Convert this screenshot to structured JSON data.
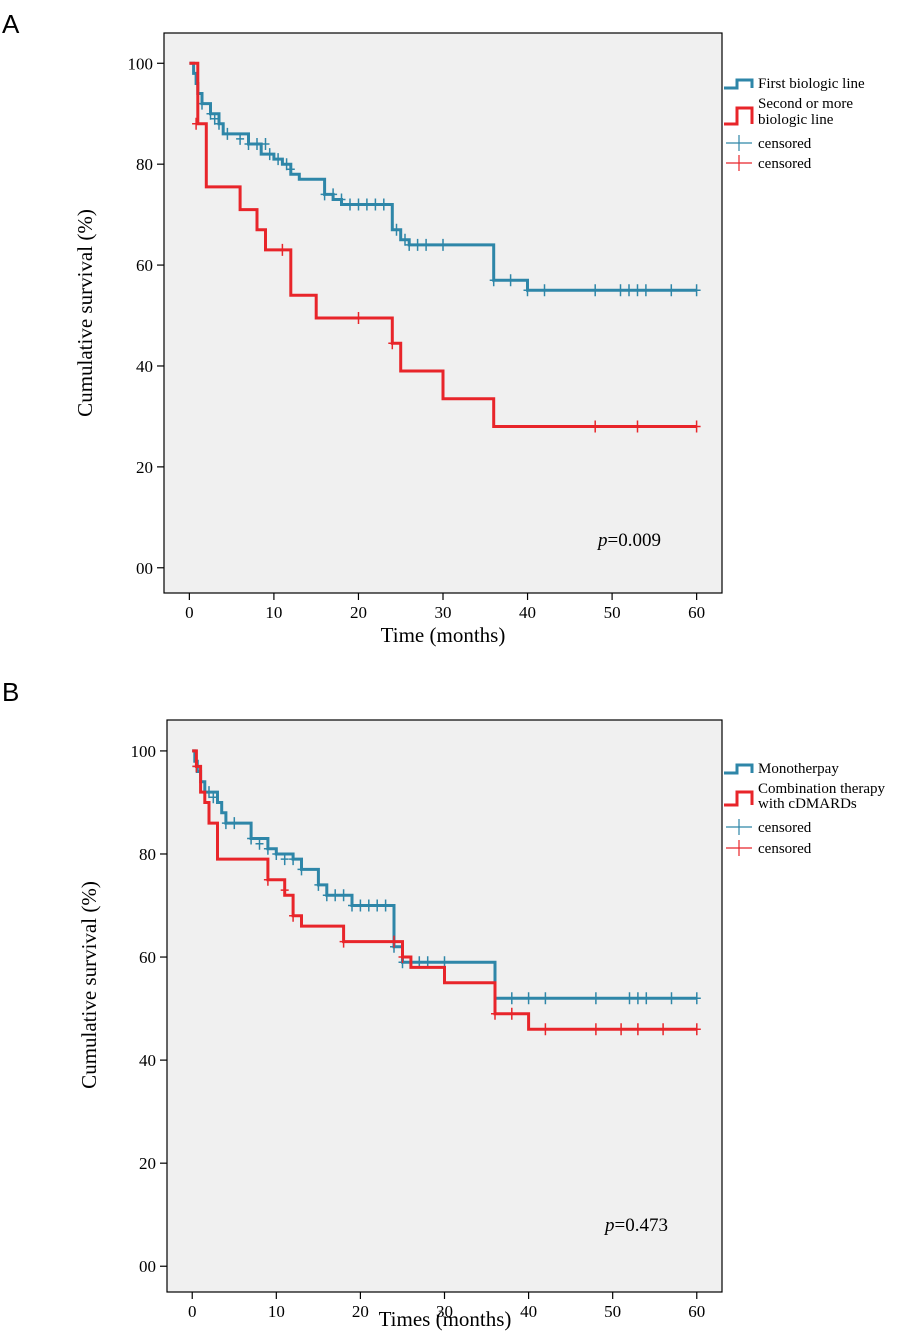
{
  "figure": {
    "panels": [
      "A",
      "B"
    ]
  },
  "chart_data": [
    {
      "type": "line",
      "subtype": "kaplan-meier",
      "panel_label": "A",
      "xlabel": "Time (months)",
      "ylabel": "Cumulative survival (%)",
      "xlim": [
        -3,
        63
      ],
      "ylim": [
        -5,
        106
      ],
      "x_ticks": [
        0,
        10,
        20,
        30,
        40,
        50,
        60
      ],
      "y_ticks": [
        0,
        20,
        40,
        60,
        80,
        100
      ],
      "y_tick_labels": [
        "00",
        "20",
        "40",
        "60",
        "80",
        "100"
      ],
      "grid": false,
      "legend_position": "right",
      "p_value_label": "p",
      "p_value_text": "=0.009",
      "series": [
        {
          "name": "First biologic line",
          "color": "#2e86a8",
          "steps": [
            [
              0,
              100
            ],
            [
              0.5,
              98
            ],
            [
              0.8,
              96
            ],
            [
              1,
              94
            ],
            [
              1.5,
              92
            ],
            [
              2.5,
              90
            ],
            [
              3.5,
              88
            ],
            [
              4,
              86
            ],
            [
              7,
              84
            ],
            [
              8.5,
              82
            ],
            [
              10,
              81
            ],
            [
              11,
              80
            ],
            [
              12,
              78
            ],
            [
              13,
              77
            ],
            [
              16,
              74
            ],
            [
              17,
              73
            ],
            [
              18,
              72
            ],
            [
              24,
              67
            ],
            [
              25,
              65
            ],
            [
              26,
              64
            ],
            [
              36,
              57
            ],
            [
              40,
              55
            ],
            [
              60,
              55
            ]
          ],
          "censored": [
            [
              1.5,
              92
            ],
            [
              2.5,
              90
            ],
            [
              3,
              89
            ],
            [
              3.5,
              88
            ],
            [
              4.5,
              86
            ],
            [
              6,
              85
            ],
            [
              7,
              84
            ],
            [
              8,
              84
            ],
            [
              9,
              84
            ],
            [
              9.5,
              82
            ],
            [
              10.5,
              81
            ],
            [
              11.5,
              80
            ],
            [
              12,
              79
            ],
            [
              16,
              74
            ],
            [
              17,
              74
            ],
            [
              18,
              73
            ],
            [
              19,
              72
            ],
            [
              20,
              72
            ],
            [
              21,
              72
            ],
            [
              22,
              72
            ],
            [
              23,
              72
            ],
            [
              24.5,
              67
            ],
            [
              25.5,
              65
            ],
            [
              26,
              64
            ],
            [
              27,
              64
            ],
            [
              28,
              64
            ],
            [
              30,
              64
            ],
            [
              36,
              57
            ],
            [
              38,
              57
            ],
            [
              40,
              55
            ],
            [
              42,
              55
            ],
            [
              48,
              55
            ],
            [
              51,
              55
            ],
            [
              52,
              55
            ],
            [
              53,
              55
            ],
            [
              54,
              55
            ],
            [
              57,
              55
            ],
            [
              60,
              55
            ]
          ],
          "censored_legend": "censored"
        },
        {
          "name": "Second or more biologic line",
          "color": "#e8252a",
          "steps": [
            [
              0,
              100
            ],
            [
              1,
              88
            ],
            [
              2,
              75.5
            ],
            [
              6,
              71
            ],
            [
              8,
              67
            ],
            [
              9,
              63
            ],
            [
              12,
              54
            ],
            [
              15,
              49.5
            ],
            [
              24,
              44.5
            ],
            [
              25,
              39
            ],
            [
              30,
              33.5
            ],
            [
              36,
              28
            ],
            [
              60,
              28
            ]
          ],
          "censored": [
            [
              0.8,
              88
            ],
            [
              11,
              63
            ],
            [
              20,
              49.5
            ],
            [
              24,
              44.5
            ],
            [
              48,
              28
            ],
            [
              53,
              28
            ],
            [
              60,
              28
            ]
          ],
          "censored_legend": "censored"
        }
      ]
    },
    {
      "type": "line",
      "subtype": "kaplan-meier",
      "panel_label": "B",
      "xlabel": "Times (months)",
      "ylabel": "Cumulative survival (%)",
      "xlim": [
        -3,
        63
      ],
      "ylim": [
        -5,
        106
      ],
      "x_ticks": [
        0,
        10,
        20,
        30,
        40,
        50,
        60
      ],
      "y_ticks": [
        0,
        20,
        40,
        60,
        80,
        100
      ],
      "y_tick_labels": [
        "00",
        "20",
        "40",
        "60",
        "80",
        "100"
      ],
      "grid": false,
      "legend_position": "right",
      "p_value_label": "p",
      "p_value_text": "=0.473",
      "series": [
        {
          "name": "Monotherpay",
          "color": "#2e86a8",
          "steps": [
            [
              0,
              100
            ],
            [
              0.3,
              98
            ],
            [
              0.6,
              96
            ],
            [
              1,
              94
            ],
            [
              1.5,
              92
            ],
            [
              3,
              90
            ],
            [
              3.5,
              88
            ],
            [
              4,
              86
            ],
            [
              7,
              83
            ],
            [
              9,
              81
            ],
            [
              10,
              80
            ],
            [
              12,
              79
            ],
            [
              13,
              77
            ],
            [
              15,
              74
            ],
            [
              16,
              72
            ],
            [
              19,
              70
            ],
            [
              24,
              62
            ],
            [
              25,
              59
            ],
            [
              36,
              52
            ],
            [
              60,
              52
            ]
          ],
          "censored": [
            [
              0.5,
              97
            ],
            [
              2,
              92
            ],
            [
              2.5,
              91
            ],
            [
              4,
              86
            ],
            [
              5,
              86
            ],
            [
              7,
              83
            ],
            [
              8,
              82
            ],
            [
              9,
              81
            ],
            [
              10,
              80
            ],
            [
              11,
              79
            ],
            [
              12,
              79
            ],
            [
              13,
              77
            ],
            [
              15,
              74
            ],
            [
              16,
              72
            ],
            [
              17,
              72
            ],
            [
              18,
              72
            ],
            [
              19,
              70
            ],
            [
              20,
              70
            ],
            [
              21,
              70
            ],
            [
              22,
              70
            ],
            [
              23,
              70
            ],
            [
              24,
              62
            ],
            [
              25,
              59
            ],
            [
              26,
              59
            ],
            [
              27,
              59
            ],
            [
              28,
              59
            ],
            [
              30,
              59
            ],
            [
              38,
              52
            ],
            [
              40,
              52
            ],
            [
              42,
              52
            ],
            [
              48,
              52
            ],
            [
              52,
              52
            ],
            [
              53,
              52
            ],
            [
              54,
              52
            ],
            [
              57,
              52
            ],
            [
              60,
              52
            ]
          ],
          "censored_legend": "censored"
        },
        {
          "name": "Combination therapy with cDMARDs",
          "color": "#e8252a",
          "steps": [
            [
              0,
              100
            ],
            [
              0.5,
              97
            ],
            [
              1,
              92
            ],
            [
              1.5,
              90
            ],
            [
              2,
              86
            ],
            [
              3,
              79
            ],
            [
              9,
              75
            ],
            [
              11,
              72
            ],
            [
              12,
              68
            ],
            [
              13,
              66
            ],
            [
              18,
              63
            ],
            [
              24,
              63
            ],
            [
              25,
              60
            ],
            [
              26,
              58
            ],
            [
              30,
              55
            ],
            [
              36,
              49
            ],
            [
              40,
              46
            ],
            [
              60,
              46
            ]
          ],
          "censored": [
            [
              0.5,
              97
            ],
            [
              9,
              75
            ],
            [
              11,
              73
            ],
            [
              12,
              68
            ],
            [
              18,
              63
            ],
            [
              24,
              63
            ],
            [
              25,
              60
            ],
            [
              36,
              49
            ],
            [
              38,
              49
            ],
            [
              42,
              46
            ],
            [
              48,
              46
            ],
            [
              51,
              46
            ],
            [
              53,
              46
            ],
            [
              56,
              46
            ],
            [
              60,
              46
            ]
          ],
          "censored_legend": "censored"
        }
      ]
    }
  ]
}
